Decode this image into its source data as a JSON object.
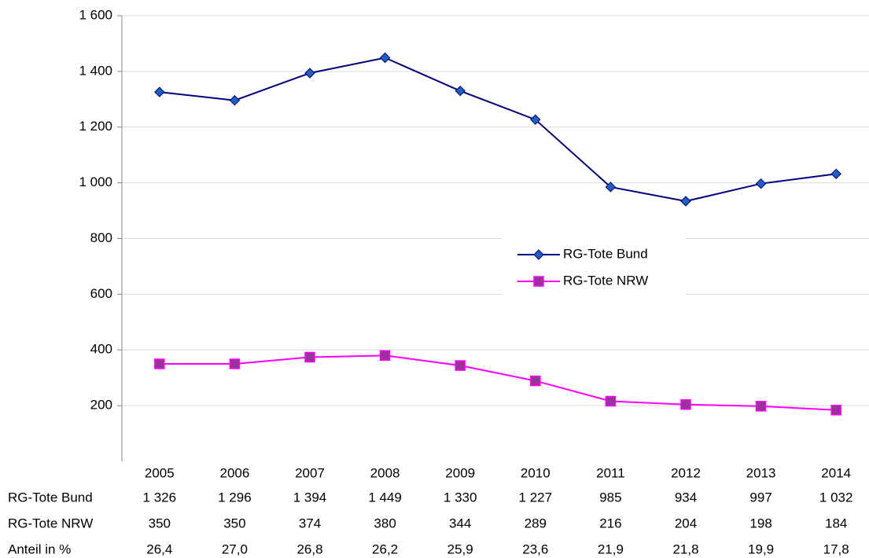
{
  "chart_data": {
    "type": "line",
    "categories": [
      "2005",
      "2006",
      "2007",
      "2008",
      "2009",
      "2010",
      "2011",
      "2012",
      "2013",
      "2014"
    ],
    "series": [
      {
        "name": "RG-Tote Bund",
        "color": "#000080",
        "marker": "diamond",
        "marker_color": "#1f5fbf",
        "values": [
          1326,
          1296,
          1394,
          1449,
          1330,
          1227,
          985,
          934,
          997,
          1032
        ],
        "value_labels": [
          "1 326",
          "1 296",
          "1 394",
          "1 449",
          "1 330",
          "1 227",
          "985",
          "934",
          "997",
          "1 032"
        ]
      },
      {
        "name": "RG-Tote NRW",
        "color": "#ff00ff",
        "marker": "square",
        "marker_color": "#993399",
        "values": [
          350,
          350,
          374,
          380,
          344,
          289,
          216,
          204,
          198,
          184
        ]
      }
    ],
    "share": {
      "name": "Anteil in %",
      "values": [
        26.4,
        27.0,
        26.8,
        26.2,
        25.9,
        23.6,
        21.9,
        21.8,
        19.9,
        17.8
      ],
      "value_labels": [
        "26,4",
        "27,0",
        "26,8",
        "26,2",
        "25,9",
        "23,6",
        "21,9",
        "21,8",
        "19,9",
        "17,8"
      ]
    },
    "ylim": [
      0,
      1600
    ],
    "yticks": [
      200,
      400,
      600,
      800,
      {
        "value": 1000,
        "label": "1 000"
      },
      {
        "value": 1200,
        "label": "1 200"
      },
      {
        "value": 1400,
        "label": "1 400"
      },
      {
        "value": 1600,
        "label": "1 600"
      }
    ],
    "grid": true,
    "legend": "right"
  }
}
